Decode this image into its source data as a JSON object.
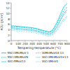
{
  "chart_data": {
    "type": "line",
    "xlabel": "Tempering temperature (°C)",
    "ylabel": "KCU (J/cm²)",
    "x": [
      0,
      100,
      200,
      300,
      400,
      450,
      500,
      550,
      600,
      650,
      700,
      750,
      800
    ],
    "series": [
      {
        "name": "55Cr3MnMoV-1",
        "color": "#00c8d8",
        "line_style": "solid",
        "values": [
          5.5,
          5.3,
          5.0,
          4.8,
          4.2,
          3.8,
          3.5,
          3.2,
          4.2,
          6.5,
          9.5,
          12.5,
          13.8
        ]
      },
      {
        "name": "55Cr3MnMoVN",
        "color": "#00c8d8",
        "line_style": "dashed",
        "values": [
          5.2,
          5.0,
          4.8,
          4.5,
          4.0,
          3.5,
          3.2,
          3.0,
          3.8,
          5.8,
          8.5,
          11.0,
          12.5
        ]
      },
      {
        "name": "40Cr5MoV13",
        "color": "#50c8e0",
        "line_style": "solid",
        "values": [
          4.8,
          4.5,
          4.3,
          4.0,
          3.5,
          3.0,
          2.8,
          2.5,
          3.2,
          5.0,
          7.5,
          10.0,
          11.5
        ]
      },
      {
        "name": "30MnMoV04-13",
        "color": "#50c8e0",
        "line_style": "dashed",
        "values": [
          4.5,
          4.2,
          4.0,
          3.8,
          3.2,
          2.8,
          2.5,
          2.3,
          3.0,
          4.8,
          7.2,
          9.5,
          11.0
        ]
      },
      {
        "name": "30Cr3MnMoV4+13",
        "color": "#90dce8",
        "line_style": "solid",
        "values": [
          4.2,
          4.0,
          3.8,
          3.5,
          3.0,
          2.5,
          2.2,
          2.0,
          2.5,
          4.0,
          6.0,
          8.0,
          9.0
        ]
      },
      {
        "name": "30Cr3MnV4",
        "color": "#90dce8",
        "line_style": "dashed",
        "values": [
          3.8,
          3.5,
          3.3,
          3.0,
          2.5,
          2.2,
          1.8,
          1.6,
          2.2,
          3.5,
          5.5,
          7.2,
          8.5
        ]
      }
    ],
    "xlim": [
      0,
      800
    ],
    "ylim": [
      0,
      14
    ],
    "xticks": [
      0,
      100,
      200,
      300,
      400,
      500,
      600,
      700,
      800
    ],
    "yticks": [
      0,
      2,
      4,
      6,
      8,
      10,
      12,
      14
    ],
    "grid": false,
    "legend": "bottom"
  }
}
